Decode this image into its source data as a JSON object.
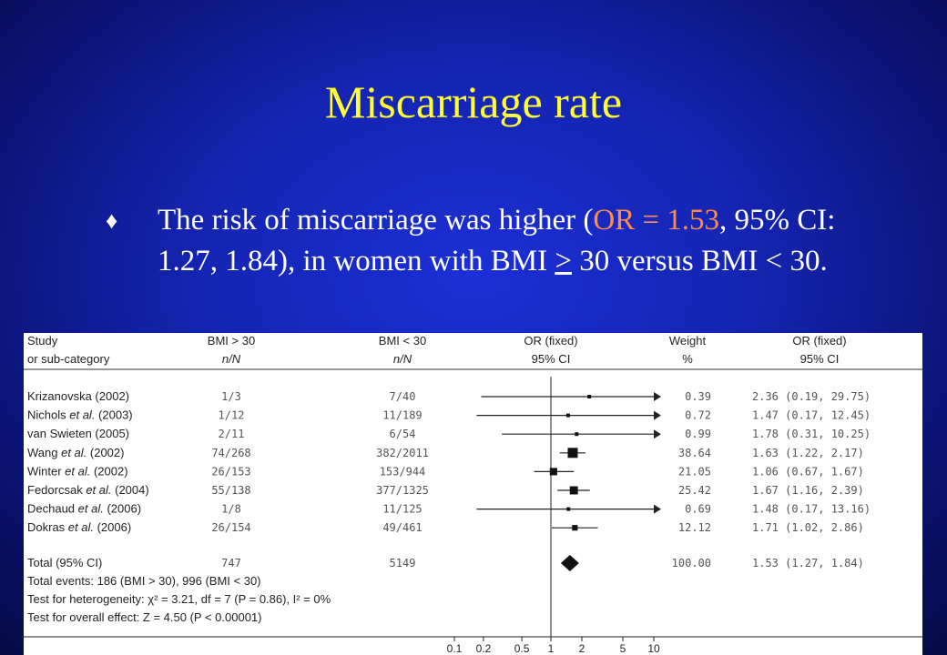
{
  "slide": {
    "title": "Miscarriage rate",
    "bullet_symbol": "♦",
    "bullet_parts": [
      {
        "text": "The risk of miscarriage was higher (",
        "style": "plain"
      },
      {
        "text": "OR = 1.53",
        "style": "highlight"
      },
      {
        "text": ", 95% CI: 1.27, 1.84), in women with BMI ",
        "style": "plain"
      },
      {
        "text": ">",
        "style": "underline"
      },
      {
        "text": " 30 versus BMI < 30.",
        "style": "plain"
      }
    ],
    "highlight_color": "#ff8c4a",
    "title_color": "#ffff33"
  },
  "chart_data": {
    "type": "forest",
    "headers": {
      "study": [
        "Study",
        "or sub-category"
      ],
      "bmi_high": [
        "BMI > 30",
        "n/N"
      ],
      "bmi_low": [
        "BMI < 30",
        "n/N"
      ],
      "or": [
        "OR (fixed)",
        "95% CI"
      ],
      "weight": [
        "Weight",
        "%"
      ],
      "orci": [
        "OR (fixed)",
        "95% CI"
      ]
    },
    "studies": [
      {
        "name": "Krizanovska (2002)",
        "high": "1/3",
        "low": "7/40",
        "weight": "0.39",
        "or": 2.36,
        "lo": 0.19,
        "hi": 29.75,
        "ci_text": "2.36 (0.19, 29.75)"
      },
      {
        "name": "Nichols et al. (2003)",
        "high": "1/12",
        "low": "11/189",
        "weight": "0.72",
        "or": 1.47,
        "lo": 0.17,
        "hi": 12.45,
        "ci_text": "1.47 (0.17, 12.45)"
      },
      {
        "name": "van Swieten (2005)",
        "high": "2/11",
        "low": "6/54",
        "weight": "0.99",
        "or": 1.78,
        "lo": 0.31,
        "hi": 10.25,
        "ci_text": "1.78 (0.31, 10.25)"
      },
      {
        "name": "Wang et al. (2002)",
        "high": "74/268",
        "low": "382/2011",
        "weight": "38.64",
        "or": 1.63,
        "lo": 1.22,
        "hi": 2.17,
        "ci_text": "1.63 (1.22, 2.17)"
      },
      {
        "name": "Winter et al. (2002)",
        "high": "26/153",
        "low": "153/944",
        "weight": "21.05",
        "or": 1.06,
        "lo": 0.67,
        "hi": 1.67,
        "ci_text": "1.06 (0.67, 1.67)"
      },
      {
        "name": "Fedorcsak et al. (2004)",
        "high": "55/138",
        "low": "377/1325",
        "weight": "25.42",
        "or": 1.67,
        "lo": 1.16,
        "hi": 2.39,
        "ci_text": "1.67 (1.16, 2.39)"
      },
      {
        "name": "Dechaud et al. (2006)",
        "high": "1/8",
        "low": "11/125",
        "weight": "0.69",
        "or": 1.48,
        "lo": 0.17,
        "hi": 13.16,
        "ci_text": "1.48 (0.17, 13.16)"
      },
      {
        "name": "Dokras et al. (2006)",
        "high": "26/154",
        "low": "49/461",
        "weight": "12.12",
        "or": 1.71,
        "lo": 1.02,
        "hi": 2.86,
        "ci_text": "1.71 (1.02, 2.86)"
      }
    ],
    "total": {
      "name": "Total (95% CI)",
      "high": "747",
      "low": "5149",
      "weight": "100.00",
      "or": 1.53,
      "lo": 1.27,
      "hi": 1.84,
      "ci_text": "1.53 (1.27, 1.84)"
    },
    "footer_lines": [
      "Total events: 186 (BMI > 30), 996 (BMI < 30)",
      "Test for heterogeneity: χ² = 3.21, df = 7 (P = 0.86), I² = 0%",
      "Test for overall effect: Z = 4.50 (P < 0.00001)"
    ],
    "x_axis": {
      "scale": "log",
      "ticks": [
        0.1,
        0.2,
        0.5,
        1,
        2,
        5,
        10
      ],
      "tick_labels": [
        "0.1",
        "0.2",
        "0.5",
        "1",
        "2",
        "5",
        "10"
      ],
      "xlim": [
        0.1,
        10
      ]
    },
    "reference_line": 1
  }
}
